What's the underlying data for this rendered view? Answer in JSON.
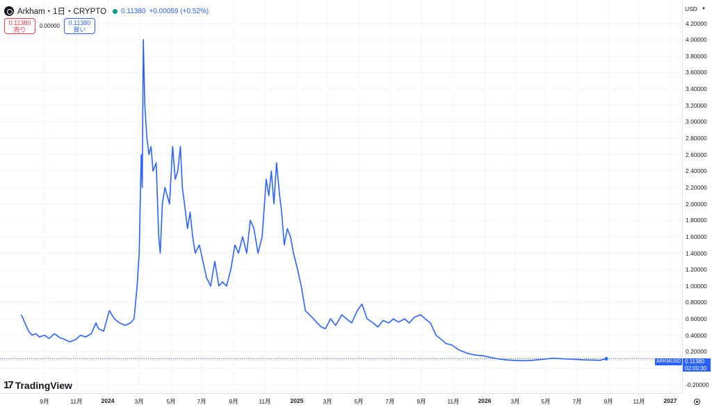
{
  "legend": {
    "symbol": "Arkham・1日・CRYPTO",
    "last": "0.11380",
    "change": "+0.00059 (+0.52%)"
  },
  "trade": {
    "sell_price": "0.11380",
    "sell_label": "売り",
    "spread": "0.00000",
    "buy_price": "0.11380",
    "buy_label": "買い"
  },
  "currency": "USD",
  "brand": "TradingView",
  "price_tag": {
    "symbol": "ARKMUSD",
    "price": "0.11380",
    "countdown": "02:00:30"
  },
  "colors": {
    "line": "#2962ff",
    "sell": "#f23645",
    "buy": "#2962ff",
    "grid": "#f0f3fa"
  },
  "chart_data": {
    "type": "line",
    "title": "Arkham・1日・CRYPTO",
    "series": [
      {
        "name": "ARKMUSD",
        "x": [
          "2023-07-18",
          "2023-07-25",
          "2023-08-01",
          "2023-08-08",
          "2023-08-15",
          "2023-08-22",
          "2023-09-01",
          "2023-09-10",
          "2023-09-20",
          "2023-10-01",
          "2023-10-10",
          "2023-10-20",
          "2023-11-01",
          "2023-11-10",
          "2023-11-20",
          "2023-12-01",
          "2023-12-10",
          "2023-12-15",
          "2023-12-25",
          "2024-01-05",
          "2024-01-15",
          "2024-01-25",
          "2024-02-05",
          "2024-02-15",
          "2024-02-22",
          "2024-02-28",
          "2024-03-03",
          "2024-03-07",
          "2024-03-09",
          "2024-03-11",
          "2024-03-14",
          "2024-03-18",
          "2024-03-22",
          "2024-03-26",
          "2024-03-30",
          "2024-04-05",
          "2024-04-10",
          "2024-04-13",
          "2024-04-17",
          "2024-04-22",
          "2024-05-01",
          "2024-05-07",
          "2024-05-12",
          "2024-05-17",
          "2024-05-22",
          "2024-05-26",
          "2024-06-01",
          "2024-06-05",
          "2024-06-10",
          "2024-06-15",
          "2024-06-20",
          "2024-06-28",
          "2024-07-05",
          "2024-07-12",
          "2024-07-20",
          "2024-07-28",
          "2024-08-05",
          "2024-08-12",
          "2024-08-20",
          "2024-08-28",
          "2024-09-05",
          "2024-09-12",
          "2024-09-20",
          "2024-09-28",
          "2024-10-05",
          "2024-10-12",
          "2024-10-20",
          "2024-10-28",
          "2024-11-05",
          "2024-11-10",
          "2024-11-15",
          "2024-11-20",
          "2024-11-25",
          "2024-12-01",
          "2024-12-05",
          "2024-12-10",
          "2024-12-16",
          "2024-12-22",
          "2024-12-28",
          "2025-01-05",
          "2025-01-12",
          "2025-01-20",
          "2025-01-28",
          "2025-02-05",
          "2025-02-12",
          "2025-02-20",
          "2025-02-28",
          "2025-03-10",
          "2025-03-20",
          "2025-04-01",
          "2025-04-10",
          "2025-04-20",
          "2025-05-01",
          "2025-05-10",
          "2025-05-20",
          "2025-06-01",
          "2025-06-10",
          "2025-06-20",
          "2025-07-01",
          "2025-07-10",
          "2025-07-20",
          "2025-08-01",
          "2025-08-10",
          "2025-08-20",
          "2025-09-01",
          "2025-09-10",
          "2025-09-20",
          "2025-10-01",
          "2025-10-11",
          "2025-10-20",
          "2025-11-01",
          "2025-11-15",
          "2025-12-01",
          "2025-12-15",
          "2026-01-01",
          "2026-01-15",
          "2026-02-01",
          "2026-02-15",
          "2026-03-01",
          "2026-03-15",
          "2026-04-01",
          "2026-04-15",
          "2026-05-01",
          "2026-05-15",
          "2026-06-01",
          "2026-06-15",
          "2026-07-01",
          "2026-07-15",
          "2026-08-01",
          "2026-08-15",
          "2026-08-28"
        ],
        "y": [
          0.65,
          0.55,
          0.45,
          0.4,
          0.42,
          0.38,
          0.4,
          0.36,
          0.42,
          0.37,
          0.35,
          0.32,
          0.35,
          0.4,
          0.38,
          0.42,
          0.55,
          0.48,
          0.45,
          0.7,
          0.6,
          0.55,
          0.52,
          0.55,
          0.6,
          1.0,
          1.4,
          2.6,
          2.2,
          4.0,
          3.2,
          2.8,
          2.6,
          2.7,
          2.4,
          2.5,
          1.6,
          1.4,
          2.0,
          2.2,
          2.0,
          2.7,
          2.3,
          2.4,
          2.7,
          2.2,
          1.9,
          1.7,
          1.9,
          1.6,
          1.4,
          1.5,
          1.3,
          1.1,
          1.0,
          1.3,
          1.0,
          1.05,
          1.0,
          1.2,
          1.5,
          1.4,
          1.6,
          1.4,
          1.8,
          1.7,
          1.4,
          1.6,
          2.3,
          2.1,
          2.4,
          2.0,
          2.5,
          2.1,
          1.9,
          1.5,
          1.7,
          1.6,
          1.4,
          1.2,
          1.0,
          0.7,
          0.65,
          0.6,
          0.55,
          0.5,
          0.48,
          0.6,
          0.52,
          0.65,
          0.6,
          0.55,
          0.7,
          0.78,
          0.6,
          0.55,
          0.5,
          0.58,
          0.55,
          0.6,
          0.56,
          0.6,
          0.55,
          0.62,
          0.65,
          0.6,
          0.55,
          0.4,
          0.35,
          0.3,
          0.28,
          0.22,
          0.18,
          0.16,
          0.15,
          0.13,
          0.11,
          0.1,
          0.095,
          0.09,
          0.092,
          0.1,
          0.11,
          0.12,
          0.115,
          0.11,
          0.105,
          0.1,
          0.098,
          0.095,
          0.1138
        ]
      }
    ],
    "yticks": [
      "4.20000",
      "4.00000",
      "3.80000",
      "3.60000",
      "3.40000",
      "3.20000",
      "3.00000",
      "2.80000",
      "2.60000",
      "2.40000",
      "2.20000",
      "2.00000",
      "1.80000",
      "1.60000",
      "1.40000",
      "1.20000",
      "1.00000",
      "0.80000",
      "0.60000",
      "0.40000",
      "0.20000",
      "0.00000",
      "-0.20000"
    ],
    "xticks": [
      "9月",
      "11月",
      "2024",
      "3月",
      "5月",
      "7月",
      "9月",
      "11月",
      "2025",
      "3月",
      "5月",
      "7月",
      "9月",
      "11月",
      "2026",
      "3月",
      "5月",
      "7月",
      "9月",
      "11月",
      "2027"
    ],
    "ylim": [
      -0.2,
      4.2
    ],
    "last_value": 0.1138,
    "grid": true
  }
}
